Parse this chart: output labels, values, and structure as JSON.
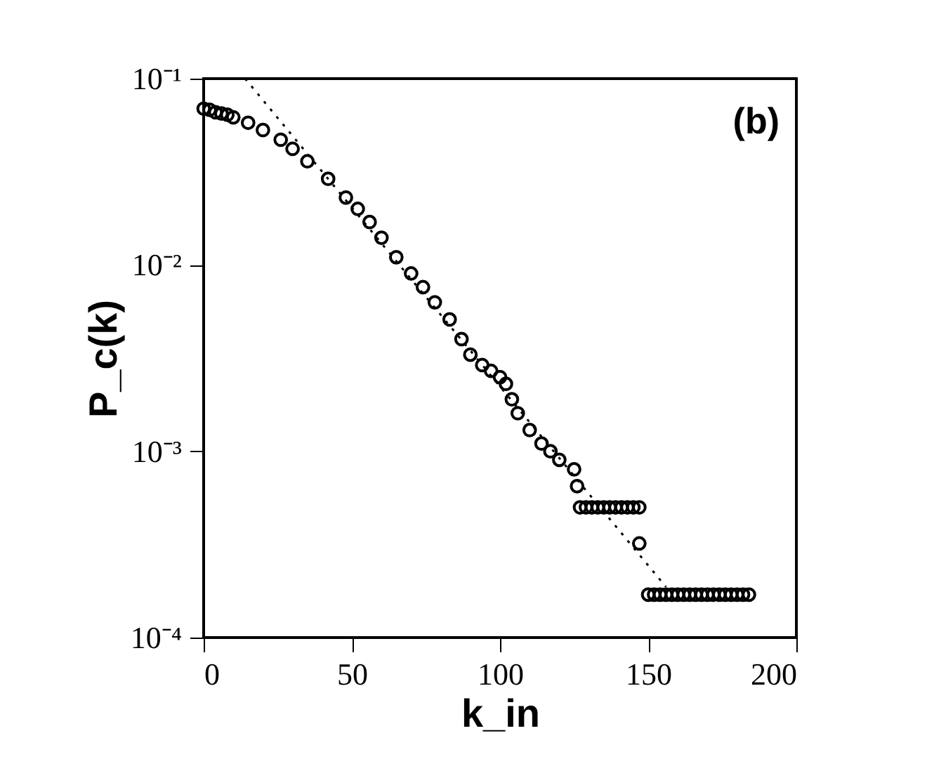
{
  "chart_data": {
    "type": "scatter",
    "xlabel": "k_in",
    "ylabel": "P_c(k)",
    "annotations": [
      "(b)"
    ],
    "log": "y",
    "grid": false,
    "legend": false,
    "xlim": [
      0,
      200
    ],
    "xticks": [
      0,
      50,
      100,
      150,
      200
    ],
    "ylim": [
      0.0001,
      0.1
    ],
    "yticks": [
      {
        "value": 0.0001,
        "label": "10⁻⁴"
      },
      {
        "value": 0.001,
        "label": "10⁻³"
      },
      {
        "value": 0.01,
        "label": "10⁻²"
      },
      {
        "value": 0.1,
        "label": "10⁻¹"
      }
    ],
    "series": [
      {
        "marker": "circle",
        "color": "#000000",
        "x": [
          0,
          2,
          4,
          6,
          8,
          10,
          15,
          20,
          26,
          30,
          35,
          42,
          48,
          52,
          56,
          60,
          65,
          70,
          74,
          78,
          83,
          87,
          90,
          94,
          97,
          100,
          102,
          104,
          106,
          110,
          114,
          117,
          120,
          125,
          126,
          127,
          129,
          131,
          133,
          135,
          137,
          139,
          141,
          143,
          145,
          147,
          147,
          150,
          152,
          154,
          156,
          158,
          160,
          162,
          164,
          166,
          168,
          170,
          172,
          174,
          176,
          178,
          180,
          182,
          184
        ],
        "values": [
          0.069,
          0.068,
          0.066,
          0.065,
          0.064,
          0.062,
          0.058,
          0.053,
          0.047,
          0.042,
          0.036,
          0.029,
          0.023,
          0.02,
          0.017,
          0.014,
          0.011,
          0.009,
          0.0076,
          0.0063,
          0.0051,
          0.004,
          0.0033,
          0.0029,
          0.0027,
          0.0025,
          0.0023,
          0.0019,
          0.0016,
          0.0013,
          0.0011,
          0.001,
          0.0009,
          0.0008,
          0.00065,
          0.0005,
          0.0005,
          0.0005,
          0.0005,
          0.0005,
          0.0005,
          0.0005,
          0.0005,
          0.0005,
          0.0005,
          0.0005,
          0.00032,
          0.00017,
          0.00017,
          0.00017,
          0.00017,
          0.00017,
          0.00017,
          0.00017,
          0.00017,
          0.00017,
          0.00017,
          0.00017,
          0.00017,
          0.00017,
          0.00017,
          0.00017,
          0.00017,
          0.00017,
          0.00017
        ]
      },
      {
        "type": "line",
        "line_style": "dotted",
        "marker": "none",
        "color": "#000000",
        "x": [
          14,
          156
        ],
        "values": [
          0.1,
          0.000187
        ]
      }
    ]
  }
}
